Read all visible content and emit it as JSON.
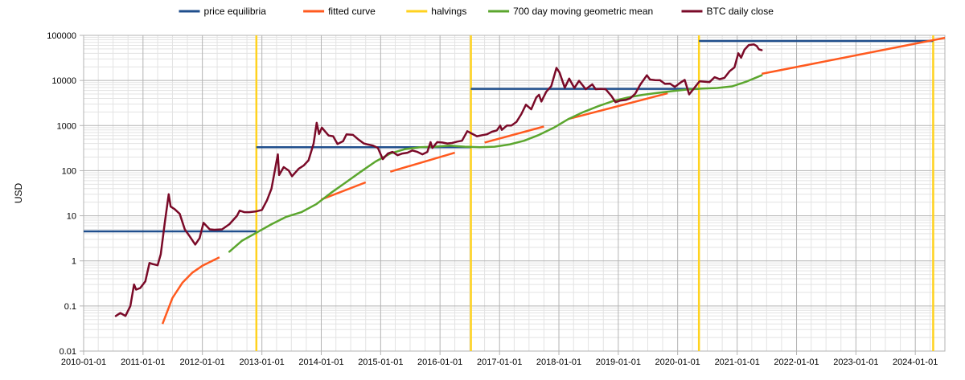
{
  "chart_data": {
    "type": "line",
    "title": "",
    "xlabel": "",
    "ylabel": "USD",
    "y_scale": "log",
    "ylim": [
      0.01,
      100000
    ],
    "xlim": [
      "2010-01-01",
      "2024-07-01"
    ],
    "grid": true,
    "legend_position": "top",
    "y_ticks": [
      "0.01",
      "0.1",
      "1",
      "10",
      "100",
      "1000",
      "10000",
      "100000"
    ],
    "x_ticks": [
      "2010-01-01",
      "2011-01-01",
      "2012-01-01",
      "2013-01-01",
      "2014-01-01",
      "2015-01-01",
      "2016-01-01",
      "2017-01-01",
      "2018-01-01",
      "2019-01-01",
      "2020-01-01",
      "2021-01-01",
      "2022-01-01",
      "2023-01-01",
      "2024-01-01"
    ],
    "series": [
      {
        "name": "price equilibria",
        "color": "#1f4e8c",
        "segments": [
          {
            "x": [
              "2010-01-01",
              "2012-11-28"
            ],
            "y": [
              4.5,
              4.5
            ]
          },
          {
            "x": [
              "2012-11-28",
              "2016-07-09"
            ],
            "y": [
              330,
              330
            ]
          },
          {
            "x": [
              "2016-07-09",
              "2020-05-11"
            ],
            "y": [
              6500,
              6500
            ]
          },
          {
            "x": [
              "2020-05-11",
              "2024-04-20"
            ],
            "y": [
              75000,
              75000
            ]
          }
        ]
      },
      {
        "name": "fitted curve",
        "color": "#ff5a1f",
        "segments": [
          {
            "x": [
              "2011-05-01",
              "2011-07-01",
              "2011-09-01",
              "2011-11-01",
              "2012-01-01",
              "2012-03-01",
              "2012-04-15"
            ],
            "y": [
              0.04,
              0.15,
              0.33,
              0.55,
              0.78,
              1.0,
              1.2
            ]
          },
          {
            "x": [
              "2014-01-01",
              "2014-10-01"
            ],
            "y": [
              23,
              55
            ]
          },
          {
            "x": [
              "2015-03-01",
              "2016-04-01"
            ],
            "y": [
              95,
              250
            ]
          },
          {
            "x": [
              "2016-10-01",
              "2017-10-01"
            ],
            "y": [
              420,
              950
            ]
          },
          {
            "x": [
              "2018-03-01",
              "2019-11-01"
            ],
            "y": [
              1400,
              5200
            ]
          },
          {
            "x": [
              "2021-06-01",
              "2024-07-01"
            ],
            "y": [
              14000,
              88000
            ]
          }
        ]
      },
      {
        "name": "halvings",
        "color": "#ffd21f",
        "dates": [
          "2012-11-28",
          "2016-07-09",
          "2020-05-11",
          "2024-04-20"
        ]
      },
      {
        "name": "700 day moving geometric mean",
        "color": "#5ba62e",
        "x": [
          "2012-06-15",
          "2012-09-01",
          "2012-11-28",
          "2013-03-01",
          "2013-06-01",
          "2013-09-01",
          "2013-12-01",
          "2014-03-01",
          "2014-06-01",
          "2014-09-01",
          "2014-12-01",
          "2015-03-01",
          "2015-06-01",
          "2015-09-01",
          "2015-12-01",
          "2016-03-01",
          "2016-06-01",
          "2016-09-01",
          "2016-12-01",
          "2017-03-01",
          "2017-06-01",
          "2017-09-01",
          "2017-12-01",
          "2018-03-01",
          "2018-06-01",
          "2018-09-01",
          "2018-12-01",
          "2019-03-01",
          "2019-06-01",
          "2019-09-01",
          "2019-12-01",
          "2020-03-01",
          "2020-06-01",
          "2020-09-01",
          "2020-12-01",
          "2021-03-01",
          "2021-06-01"
        ],
        "y": [
          1.6,
          2.8,
          4.2,
          6.5,
          9.5,
          12,
          18,
          32,
          55,
          95,
          160,
          240,
          300,
          330,
          340,
          360,
          340,
          330,
          340,
          380,
          460,
          620,
          900,
          1400,
          2000,
          2700,
          3500,
          4200,
          4800,
          5300,
          5800,
          6300,
          6600,
          6800,
          7400,
          9500,
          13000
        ]
      },
      {
        "name": "BTC daily close",
        "color": "#7a0a28",
        "x": [
          "2010-07-18",
          "2010-08-15",
          "2010-09-15",
          "2010-10-15",
          "2010-11-07",
          "2010-11-20",
          "2010-12-15",
          "2011-01-15",
          "2011-02-10",
          "2011-03-01",
          "2011-04-01",
          "2011-04-20",
          "2011-05-15",
          "2011-06-08",
          "2011-06-20",
          "2011-07-15",
          "2011-08-15",
          "2011-09-15",
          "2011-10-15",
          "2011-11-18",
          "2011-12-15",
          "2012-01-08",
          "2012-02-15",
          "2012-03-15",
          "2012-05-01",
          "2012-06-15",
          "2012-08-01",
          "2012-08-17",
          "2012-09-15",
          "2012-10-15",
          "2012-11-28",
          "2013-01-01",
          "2013-02-01",
          "2013-03-01",
          "2013-04-09",
          "2013-04-17",
          "2013-05-15",
          "2013-06-15",
          "2013-07-05",
          "2013-08-15",
          "2013-09-15",
          "2013-10-15",
          "2013-11-15",
          "2013-12-04",
          "2013-12-18",
          "2014-01-05",
          "2014-02-15",
          "2014-03-15",
          "2014-04-11",
          "2014-05-15",
          "2014-06-05",
          "2014-07-15",
          "2014-08-15",
          "2014-09-20",
          "2014-10-15",
          "2014-11-15",
          "2014-12-15",
          "2015-01-14",
          "2015-02-15",
          "2015-03-15",
          "2015-04-15",
          "2015-05-15",
          "2015-06-15",
          "2015-07-15",
          "2015-08-15",
          "2015-09-15",
          "2015-10-15",
          "2015-11-04",
          "2015-11-15",
          "2015-12-15",
          "2016-01-15",
          "2016-02-15",
          "2016-03-15",
          "2016-04-15",
          "2016-05-15",
          "2016-06-17",
          "2016-07-15",
          "2016-08-15",
          "2016-09-15",
          "2016-10-15",
          "2016-11-15",
          "2016-12-15",
          "2017-01-05",
          "2017-01-15",
          "2017-02-15",
          "2017-03-15",
          "2017-04-15",
          "2017-05-15",
          "2017-06-12",
          "2017-07-15",
          "2017-08-15",
          "2017-09-01",
          "2017-09-15",
          "2017-10-15",
          "2017-11-15",
          "2017-12-17",
          "2018-01-05",
          "2018-02-06",
          "2018-03-05",
          "2018-04-06",
          "2018-05-05",
          "2018-06-15",
          "2018-07-25",
          "2018-08-15",
          "2018-09-15",
          "2018-10-15",
          "2018-11-20",
          "2018-12-15",
          "2019-01-15",
          "2019-02-15",
          "2019-03-15",
          "2019-04-15",
          "2019-05-15",
          "2019-06-26",
          "2019-07-15",
          "2019-08-15",
          "2019-09-15",
          "2019-10-15",
          "2019-11-15",
          "2019-12-15",
          "2020-01-15",
          "2020-02-13",
          "2020-03-12",
          "2020-04-15",
          "2020-05-15",
          "2020-06-15",
          "2020-07-15",
          "2020-08-15",
          "2020-09-15",
          "2020-10-15",
          "2020-11-15",
          "2020-12-15",
          "2021-01-08",
          "2021-01-25",
          "2021-02-15",
          "2021-03-13",
          "2021-04-14",
          "2021-05-01",
          "2021-05-15",
          "2021-06-01"
        ],
        "y": [
          0.06,
          0.07,
          0.06,
          0.1,
          0.3,
          0.23,
          0.25,
          0.35,
          0.9,
          0.85,
          0.8,
          1.4,
          7,
          30,
          16,
          14,
          11,
          5,
          3.5,
          2.3,
          3.2,
          7,
          5,
          4.9,
          5,
          6.5,
          10,
          13,
          12,
          12,
          12.5,
          13.5,
          22,
          40,
          230,
          80,
          120,
          100,
          75,
          110,
          130,
          170,
          400,
          1150,
          650,
          900,
          600,
          580,
          390,
          450,
          640,
          620,
          500,
          400,
          380,
          360,
          320,
          180,
          240,
          260,
          220,
          240,
          250,
          280,
          260,
          230,
          260,
          430,
          320,
          430,
          420,
          400,
          410,
          440,
          460,
          750,
          660,
          580,
          610,
          640,
          730,
          780,
          1000,
          800,
          1000,
          1000,
          1200,
          1800,
          2900,
          2300,
          4200,
          4800,
          3400,
          5600,
          7500,
          19000,
          15000,
          6900,
          11000,
          6800,
          9800,
          6400,
          8200,
          6400,
          6500,
          6400,
          4500,
          3300,
          3600,
          3700,
          4000,
          5100,
          8000,
          13000,
          10500,
          10200,
          10100,
          8400,
          8500,
          7200,
          8800,
          10300,
          4900,
          7000,
          9600,
          9400,
          9200,
          11800,
          10700,
          11400,
          16000,
          19500,
          40000,
          32000,
          48000,
          61000,
          63000,
          58000,
          49000,
          47000
        ]
      }
    ]
  }
}
